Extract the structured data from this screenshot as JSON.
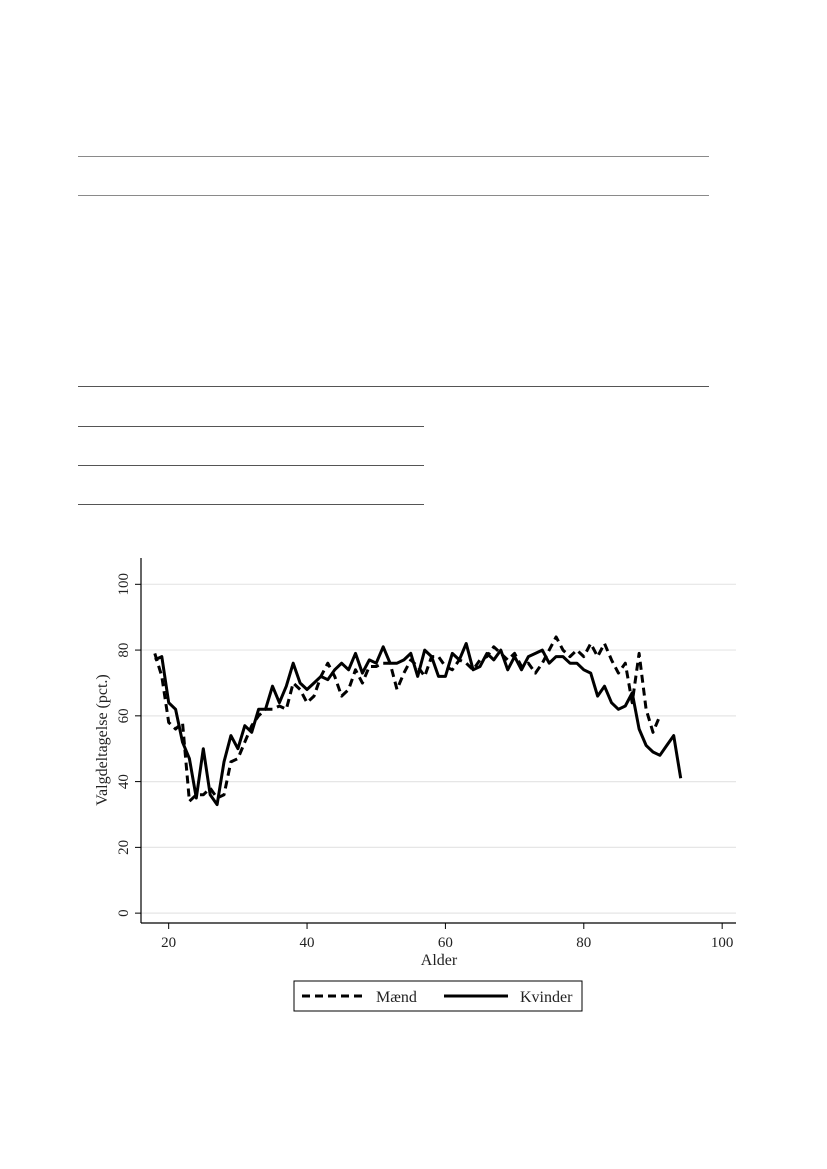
{
  "chart_data": {
    "type": "line",
    "xlabel": "Alder",
    "ylabel": "Valgdeltagelse (pct.)",
    "xlim": [
      16,
      102
    ],
    "ylim": [
      -3,
      108
    ],
    "x_ticks": [
      20,
      40,
      60,
      80,
      100
    ],
    "y_ticks": [
      0,
      20,
      40,
      60,
      80,
      100
    ],
    "grid": true,
    "legend_position": "bottom",
    "series": [
      {
        "name": "Mænd",
        "style": "dashed",
        "color": "#000000",
        "x": [
          18,
          19,
          20,
          21,
          22,
          23,
          24,
          25,
          26,
          27,
          28,
          29,
          30,
          31,
          32,
          33,
          34,
          35,
          36,
          37,
          38,
          39,
          40,
          41,
          42,
          43,
          44,
          45,
          46,
          47,
          48,
          49,
          50,
          51,
          52,
          53,
          54,
          55,
          56,
          57,
          58,
          59,
          60,
          61,
          62,
          63,
          64,
          65,
          66,
          67,
          68,
          69,
          70,
          71,
          72,
          73,
          74,
          75,
          76,
          77,
          78,
          79,
          80,
          81,
          82,
          83,
          84,
          85,
          86,
          87,
          88,
          89,
          90,
          91
        ],
        "y": [
          79,
          72,
          58,
          56,
          58,
          34,
          36,
          36,
          38,
          35,
          36,
          46,
          47,
          52,
          57,
          60,
          62,
          62,
          63,
          62,
          70,
          68,
          64,
          66,
          72,
          76,
          72,
          66,
          68,
          74,
          70,
          75,
          75,
          76,
          76,
          68,
          73,
          77,
          75,
          72,
          78,
          78,
          75,
          74,
          77,
          76,
          74,
          77,
          78,
          81,
          79,
          77,
          79,
          75,
          76,
          73,
          76,
          80,
          84,
          80,
          78,
          80,
          78,
          82,
          78,
          82,
          77,
          73,
          76,
          64,
          79,
          62,
          55,
          60
        ]
      },
      {
        "name": "Kvinder",
        "style": "solid",
        "color": "#000000",
        "x": [
          18,
          19,
          20,
          21,
          22,
          23,
          24,
          25,
          26,
          27,
          28,
          29,
          30,
          31,
          32,
          33,
          34,
          35,
          36,
          37,
          38,
          39,
          40,
          41,
          42,
          43,
          44,
          45,
          46,
          47,
          48,
          49,
          50,
          51,
          52,
          53,
          54,
          55,
          56,
          57,
          58,
          59,
          60,
          61,
          62,
          63,
          64,
          65,
          66,
          67,
          68,
          69,
          70,
          71,
          72,
          73,
          74,
          75,
          76,
          77,
          78,
          79,
          80,
          81,
          82,
          83,
          84,
          85,
          86,
          87,
          88,
          89,
          90,
          91,
          92,
          93,
          94
        ],
        "y": [
          77,
          78,
          64,
          62,
          52,
          47,
          35,
          50,
          36,
          33,
          46,
          54,
          50,
          57,
          55,
          62,
          62,
          69,
          64,
          69,
          76,
          70,
          68,
          70,
          72,
          71,
          74,
          76,
          74,
          79,
          73,
          77,
          76,
          81,
          76,
          76,
          77,
          79,
          72,
          80,
          78,
          72,
          72,
          79,
          77,
          82,
          74,
          75,
          79,
          77,
          80,
          74,
          78,
          74,
          78,
          79,
          80,
          76,
          78,
          78,
          76,
          76,
          74,
          73,
          66,
          69,
          64,
          62,
          63,
          67,
          56,
          51,
          49,
          48,
          51,
          54,
          41
        ]
      }
    ]
  }
}
